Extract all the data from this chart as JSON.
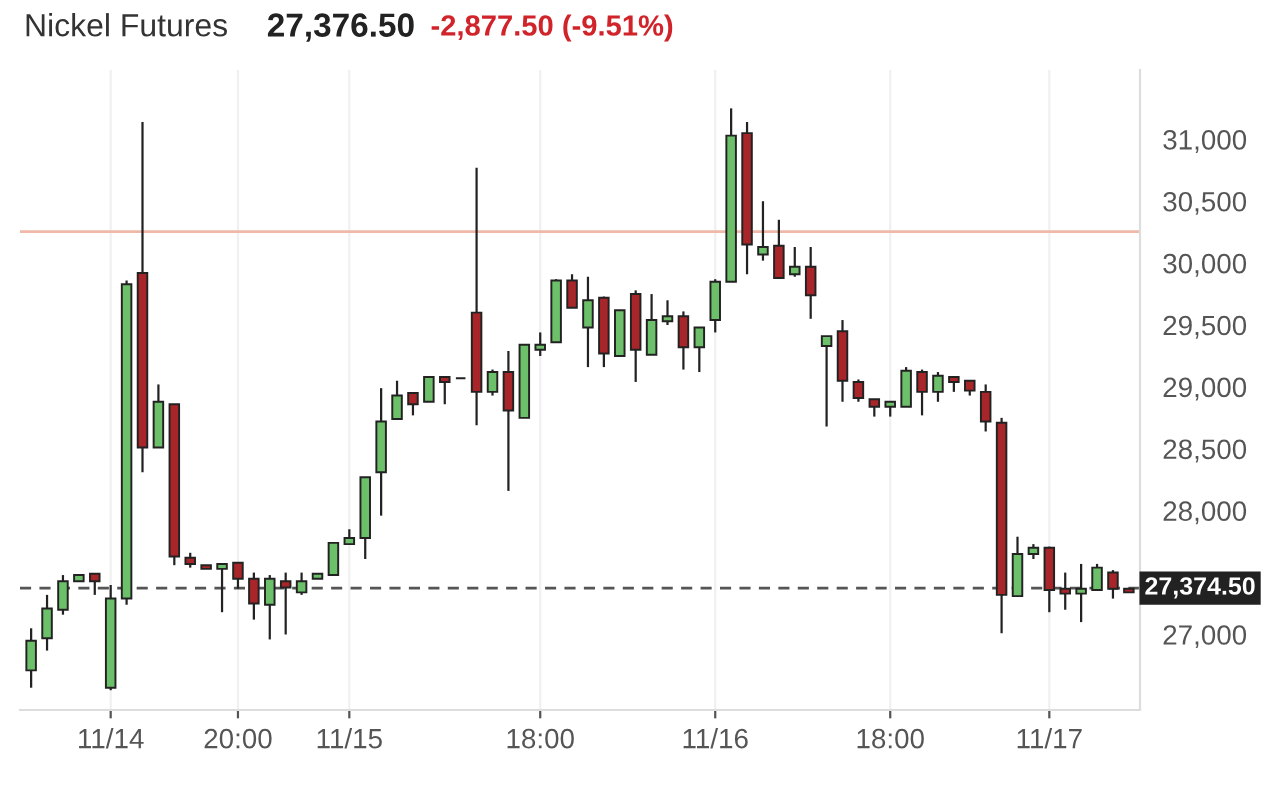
{
  "chart_data": {
    "type": "candlestick",
    "title": "Nickel Futures",
    "annotations": [
      "27,376.50",
      "-2,877.50 (-9.51%)"
    ],
    "categories": [
      null,
      null,
      null,
      null,
      null,
      "11/14",
      null,
      null,
      null,
      null,
      null,
      null,
      null,
      "20:00",
      null,
      null,
      null,
      null,
      null,
      null,
      "11/15",
      null,
      null,
      null,
      null,
      null,
      null,
      null,
      null,
      null,
      null,
      null,
      "18:00",
      null,
      null,
      null,
      null,
      null,
      null,
      null,
      null,
      null,
      null,
      "11/16",
      null,
      null,
      null,
      null,
      null,
      null,
      null,
      null,
      null,
      null,
      "18:00",
      null,
      null,
      null,
      null,
      null,
      null,
      null,
      null,
      null,
      "11/17",
      null,
      null,
      null,
      null,
      null
    ],
    "ohlc": [
      [
        26710,
        27050,
        26570,
        26950
      ],
      [
        26970,
        27320,
        26870,
        27210
      ],
      [
        27200,
        27480,
        27160,
        27430
      ],
      [
        27430,
        27480,
        27430,
        27480
      ],
      [
        27490,
        27490,
        27320,
        27430
      ],
      [
        26570,
        27400,
        26550,
        27290
      ],
      [
        27290,
        29860,
        27240,
        29830
      ],
      [
        29920,
        31140,
        28310,
        28510
      ],
      [
        28510,
        29020,
        28510,
        28880
      ],
      [
        28860,
        28860,
        27560,
        27630
      ],
      [
        27620,
        27660,
        27540,
        27570
      ],
      [
        27560,
        27560,
        27530,
        27530
      ],
      [
        27530,
        27570,
        27180,
        27570
      ],
      [
        27580,
        27580,
        27370,
        27450
      ],
      [
        27450,
        27500,
        27120,
        27250
      ],
      [
        27240,
        27480,
        26960,
        27450
      ],
      [
        27430,
        27500,
        27000,
        27380
      ],
      [
        27340,
        27500,
        27320,
        27430
      ],
      [
        27450,
        27490,
        27450,
        27490
      ],
      [
        27480,
        27740,
        27480,
        27740
      ],
      [
        27730,
        27850,
        27730,
        27780
      ],
      [
        27780,
        28270,
        27610,
        28270
      ],
      [
        28310,
        28990,
        27960,
        28720
      ],
      [
        28740,
        29050,
        28740,
        28930
      ],
      [
        28950,
        28950,
        28770,
        28860
      ],
      [
        28880,
        29080,
        28880,
        29080
      ],
      [
        29080,
        29080,
        28860,
        29040
      ],
      [
        29070,
        29070,
        29070,
        29070
      ],
      [
        29600,
        30770,
        28690,
        28960
      ],
      [
        28960,
        29140,
        28930,
        29120
      ],
      [
        29120,
        29290,
        28160,
        28810
      ],
      [
        28750,
        29340,
        28750,
        29340
      ],
      [
        29300,
        29440,
        29250,
        29340
      ],
      [
        29360,
        29870,
        29360,
        29860
      ],
      [
        29860,
        29910,
        29640,
        29640
      ],
      [
        29480,
        29890,
        29160,
        29700
      ],
      [
        29720,
        29730,
        29160,
        29270
      ],
      [
        29250,
        29620,
        29250,
        29620
      ],
      [
        29750,
        29780,
        29040,
        29300
      ],
      [
        29260,
        29750,
        29260,
        29540
      ],
      [
        29530,
        29700,
        29500,
        29570
      ],
      [
        29570,
        29610,
        29140,
        29320
      ],
      [
        29320,
        29480,
        29120,
        29480
      ],
      [
        29540,
        29870,
        29440,
        29850
      ],
      [
        29850,
        31250,
        29850,
        31030
      ],
      [
        31050,
        31140,
        29910,
        30150
      ],
      [
        30070,
        30500,
        30020,
        30130
      ],
      [
        30140,
        30350,
        29880,
        29880
      ],
      [
        29910,
        30130,
        29890,
        29970
      ],
      [
        29970,
        30130,
        29550,
        29740
      ],
      [
        29330,
        29410,
        28680,
        29410
      ],
      [
        29450,
        29540,
        28880,
        29050
      ],
      [
        29040,
        29060,
        28880,
        28910
      ],
      [
        28900,
        28900,
        28760,
        28840
      ],
      [
        28840,
        28880,
        28760,
        28880
      ],
      [
        28840,
        29160,
        28840,
        29130
      ],
      [
        29120,
        29140,
        28770,
        28960
      ],
      [
        28960,
        29120,
        28880,
        29090
      ],
      [
        29080,
        29080,
        28960,
        29040
      ],
      [
        29050,
        29050,
        28930,
        28970
      ],
      [
        28960,
        29020,
        28640,
        28720
      ],
      [
        28710,
        28750,
        27010,
        27320
      ],
      [
        27310,
        27790,
        27310,
        27650
      ],
      [
        27650,
        27730,
        27610,
        27700
      ],
      [
        27700,
        27710,
        27180,
        27360
      ],
      [
        27370,
        27500,
        27200,
        27330
      ],
      [
        27330,
        27570,
        27100,
        27370
      ],
      [
        27360,
        27570,
        27360,
        27540
      ],
      [
        27500,
        27520,
        27290,
        27370
      ],
      [
        27370,
        27370,
        27340,
        27340
      ]
    ],
    "colors": [
      "#6cc06a",
      "#6cc06a",
      "#6cc06a",
      "#6cc06a",
      "#a8262a",
      "#6cc06a",
      "#6cc06a",
      "#a8262a",
      "#6cc06a",
      "#a8262a",
      "#a8262a",
      "#a8262a",
      "#6cc06a",
      "#a8262a",
      "#a8262a",
      "#6cc06a",
      "#a8262a",
      "#6cc06a",
      "#6cc06a",
      "#6cc06a",
      "#6cc06a",
      "#6cc06a",
      "#6cc06a",
      "#6cc06a",
      "#a8262a",
      "#6cc06a",
      "#a8262a",
      "#222222",
      "#a8262a",
      "#6cc06a",
      "#a8262a",
      "#6cc06a",
      "#6cc06a",
      "#6cc06a",
      "#a8262a",
      "#6cc06a",
      "#a8262a",
      "#6cc06a",
      "#a8262a",
      "#6cc06a",
      "#6cc06a",
      "#a8262a",
      "#6cc06a",
      "#6cc06a",
      "#6cc06a",
      "#a8262a",
      "#6cc06a",
      "#a8262a",
      "#6cc06a",
      "#a8262a",
      "#6cc06a",
      "#a8262a",
      "#a8262a",
      "#a8262a",
      "#6cc06a",
      "#6cc06a",
      "#a8262a",
      "#6cc06a",
      "#a8262a",
      "#a8262a",
      "#a8262a",
      "#a8262a",
      "#6cc06a",
      "#6cc06a",
      "#a8262a",
      "#a8262a",
      "#6cc06a",
      "#6cc06a",
      "#a8262a",
      "#a8262a"
    ],
    "ylim": [
      26390,
      31560
    ],
    "yticks": [
      {
        "value": 27000,
        "label": "27,000"
      },
      {
        "value": 28000,
        "label": "28,000"
      },
      {
        "value": 28500,
        "label": "28,500"
      },
      {
        "value": 29000,
        "label": "29,000"
      },
      {
        "value": 29500,
        "label": "29,500"
      },
      {
        "value": 30000,
        "label": "30,000"
      },
      {
        "value": 30500,
        "label": "30,500"
      },
      {
        "value": 31000,
        "label": "31,000"
      }
    ],
    "grid": "x",
    "ref_lines": [
      {
        "axis": "y",
        "value": 30254,
        "color": "#f0b8a8",
        "line_style": "solid"
      },
      {
        "axis": "y",
        "value": 27374.5,
        "label": "27,374.50",
        "color": "#555555",
        "line_style": "dashed"
      }
    ]
  }
}
